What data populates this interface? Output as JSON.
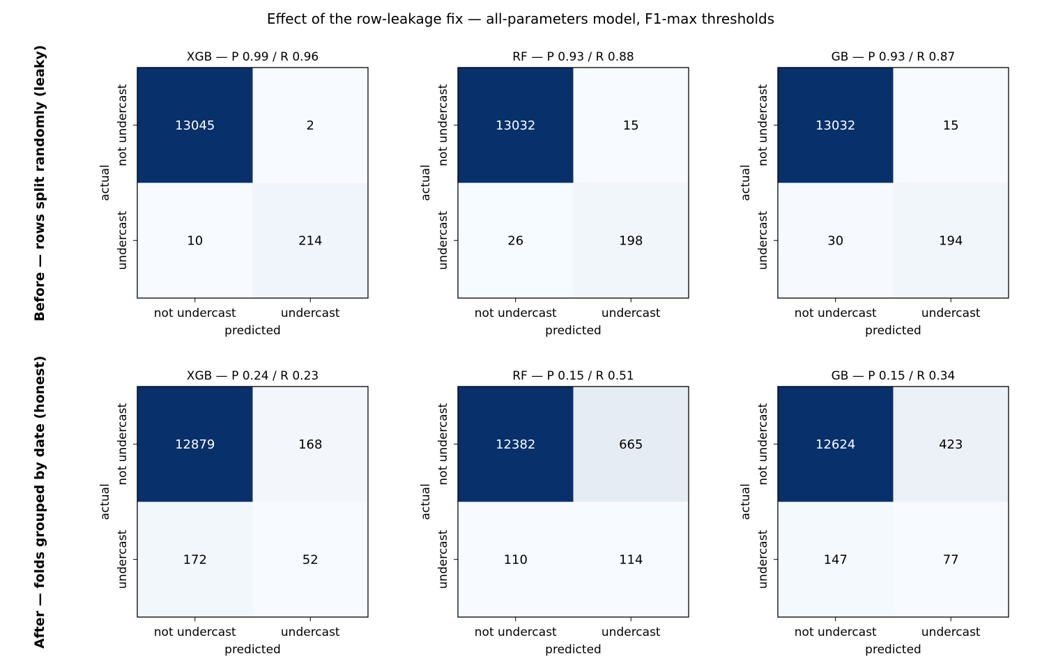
{
  "figure": {
    "title": "Effect of the row-leakage fix — all-parameters model, F1-max thresholds"
  },
  "colormap": {
    "name": "Blues",
    "low": "#f7fbff",
    "high": "#08306b",
    "text_dark": "#000000",
    "text_light": "#ffffff"
  },
  "chart_data": {
    "type": "heatmap",
    "kind": "confusion-matrix-grid",
    "title": "Effect of the row-leakage fix — all-parameters model, F1-max thresholds",
    "row_labels": [
      "Before — rows split randomly (leaky)",
      "After — folds grouped by date (honest)"
    ],
    "xlabel": "predicted",
    "ylabel": "actual",
    "classes": [
      "not undercast",
      "undercast"
    ],
    "panels": [
      {
        "row": 0,
        "col": 0,
        "title": "XGB — P 0.99 / R 0.96",
        "matrix": [
          [
            13045,
            2
          ],
          [
            10,
            214
          ]
        ]
      },
      {
        "row": 0,
        "col": 1,
        "title": "RF — P 0.93 / R 0.88",
        "matrix": [
          [
            13032,
            15
          ],
          [
            26,
            198
          ]
        ]
      },
      {
        "row": 0,
        "col": 2,
        "title": "GB — P 0.93 / R 0.87",
        "matrix": [
          [
            13032,
            15
          ],
          [
            30,
            194
          ]
        ]
      },
      {
        "row": 1,
        "col": 0,
        "title": "XGB — P 0.24 / R 0.23",
        "matrix": [
          [
            12879,
            168
          ],
          [
            172,
            52
          ]
        ]
      },
      {
        "row": 1,
        "col": 1,
        "title": "RF — P 0.15 / R 0.51",
        "matrix": [
          [
            12382,
            665
          ],
          [
            110,
            114
          ]
        ]
      },
      {
        "row": 1,
        "col": 2,
        "title": "GB — P 0.15 / R 0.34",
        "matrix": [
          [
            12624,
            423
          ],
          [
            147,
            77
          ]
        ]
      }
    ]
  }
}
